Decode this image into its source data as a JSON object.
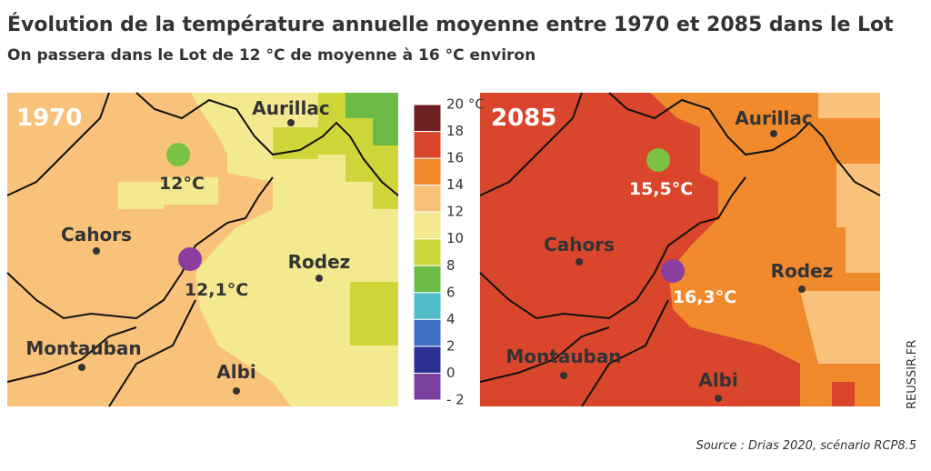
{
  "header": {
    "title": "Évolution de la température annuelle moyenne entre 1970 et 2085 dans le Lot",
    "subtitle": "On passera dans le Lot de 12 °C de moyenne à 16 °C environ"
  },
  "maps": [
    {
      "label": "1970",
      "cities": [
        "Aurillac",
        "Cahors",
        "Rodez",
        "Montauban",
        "Albi"
      ],
      "points": [
        "12°C",
        "12,1°C"
      ]
    },
    {
      "label": "2085",
      "cities": [
        "Aurillac",
        "Cahors",
        "Rodez",
        "Montauban",
        "Albi"
      ],
      "points": [
        "15,5°C",
        "16,3°C"
      ]
    }
  ],
  "legend": {
    "ticks": [
      "20 °C",
      "18",
      "16",
      "14",
      "12",
      "10",
      "8",
      "6",
      "4",
      "2",
      "0",
      "- 2"
    ],
    "colors": [
      "#6e1f1f",
      "#d9462c",
      "#f08a2c",
      "#f8c27a",
      "#f3ea90",
      "#cfd63a",
      "#6cbb47",
      "#4fbcc8",
      "#3d6fc2",
      "#2b2f90",
      "#7b3fa0"
    ]
  },
  "source": "Source : Drias 2020, scénario RCP8.5",
  "credit": "REUSSIR.FR"
}
